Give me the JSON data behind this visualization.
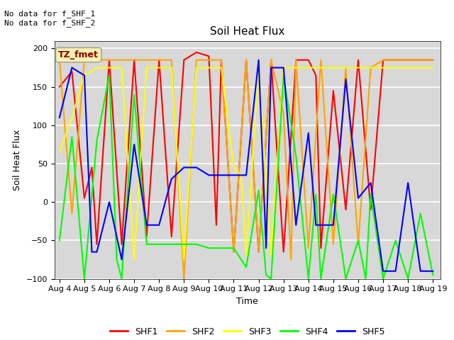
{
  "title": "Soil Heat Flux",
  "xlabel": "Time",
  "ylabel": "Soil Heat Flux",
  "ylim": [
    -100,
    210
  ],
  "annotation_text": "No data for f_SHF_1\nNo data for f_SHF_2",
  "legend_label": "TZ_fmet",
  "ax_background_color": "#d8d8d8",
  "fig_background_color": "#ffffff",
  "series": {
    "SHF1": {
      "color": "red",
      "x": [
        4,
        4.5,
        5,
        5.3,
        5.5,
        6,
        6.5,
        7,
        7.5,
        8,
        8.5,
        9,
        9.5,
        10,
        10.3,
        10.5,
        11,
        11.5,
        12,
        12.5,
        13,
        13.5,
        14,
        14.3,
        14.5,
        15,
        15.5,
        16,
        16.5,
        17,
        17.5,
        18,
        18.5,
        19
      ],
      "y": [
        150,
        170,
        5,
        45,
        -55,
        185,
        -55,
        185,
        -45,
        185,
        -45,
        185,
        195,
        190,
        -30,
        185,
        -65,
        185,
        -65,
        185,
        -65,
        185,
        185,
        165,
        -60,
        145,
        -10,
        185,
        -10,
        185,
        185,
        185,
        185,
        185
      ]
    },
    "SHF2": {
      "color": "orange",
      "x": [
        4,
        4.5,
        5,
        5.5,
        6,
        6.5,
        7,
        7.5,
        8,
        8.5,
        9,
        9.5,
        10,
        10.5,
        11,
        11.5,
        12,
        12.5,
        13,
        13.3,
        13.5,
        14,
        14.5,
        15,
        15.5,
        16,
        16.5,
        17,
        17.5,
        18,
        18.5,
        19
      ],
      "y": [
        185,
        -15,
        185,
        185,
        185,
        185,
        185,
        185,
        185,
        185,
        -100,
        185,
        185,
        185,
        -65,
        185,
        -65,
        185,
        115,
        -75,
        185,
        -60,
        185,
        -55,
        175,
        -55,
        175,
        185,
        185,
        185,
        185,
        185
      ]
    },
    "SHF3": {
      "color": "yellow",
      "x": [
        4,
        4.5,
        5,
        5.5,
        6,
        6.5,
        7,
        7.5,
        8,
        8.5,
        9,
        9.5,
        10,
        10.5,
        11,
        11.3,
        11.5,
        12,
        12.5,
        13,
        13.5,
        14,
        14.5,
        15,
        15.5,
        16,
        16.5,
        17,
        17.5,
        18,
        18.5,
        19
      ],
      "y": [
        65,
        110,
        165,
        175,
        175,
        175,
        -75,
        175,
        175,
        175,
        -75,
        175,
        175,
        175,
        45,
        35,
        -70,
        175,
        -70,
        175,
        175,
        175,
        175,
        175,
        175,
        175,
        175,
        175,
        175,
        175,
        175,
        175
      ]
    },
    "SHF4": {
      "color": "lime",
      "x": [
        4,
        4.5,
        5,
        5.5,
        6,
        6.3,
        6.5,
        7,
        7.5,
        8,
        8.5,
        9,
        9.5,
        10,
        10.5,
        11,
        11.5,
        12,
        12.3,
        12.5,
        13,
        13.5,
        14,
        14.3,
        14.5,
        15,
        15.5,
        16,
        16.3,
        16.5,
        17,
        17.5,
        18,
        18.5,
        19
      ],
      "y": [
        -50,
        85,
        -100,
        80,
        165,
        -75,
        -100,
        140,
        -55,
        -55,
        -55,
        -55,
        -55,
        -60,
        -60,
        -60,
        -85,
        15,
        -95,
        -100,
        165,
        60,
        -100,
        10,
        -100,
        10,
        -100,
        -50,
        -100,
        10,
        -100,
        -50,
        -100,
        -15,
        -95
      ]
    },
    "SHF5": {
      "color": "blue",
      "x": [
        4,
        4.5,
        5,
        5.3,
        5.5,
        6,
        6.5,
        7,
        7.5,
        8,
        8.5,
        9,
        9.5,
        10,
        10.5,
        11,
        11.5,
        12,
        12.3,
        12.5,
        13,
        13.5,
        14,
        14.3,
        14.5,
        15,
        15.5,
        16,
        16.5,
        17,
        17.5,
        18,
        18.5,
        19
      ],
      "y": [
        110,
        175,
        165,
        -65,
        -65,
        0,
        -75,
        75,
        -30,
        -30,
        30,
        45,
        45,
        35,
        35,
        35,
        35,
        185,
        -60,
        175,
        175,
        -30,
        90,
        -30,
        -30,
        -30,
        160,
        5,
        25,
        -90,
        -90,
        25,
        -90,
        -90
      ]
    }
  },
  "xticks": [
    4,
    5,
    6,
    7,
    8,
    9,
    10,
    11,
    12,
    13,
    14,
    15,
    16,
    17,
    18,
    19
  ],
  "xtick_labels": [
    "Aug 4",
    "Aug 5",
    "Aug 6",
    "Aug 7",
    "Aug 8",
    "Aug 9",
    "Aug 10",
    "Aug 11",
    "Aug 12",
    "Aug 13",
    "Aug 14",
    "Aug 15",
    "Aug 16",
    "Aug 17",
    "Aug 18",
    "Aug 19"
  ],
  "yticks": [
    -100,
    -50,
    0,
    50,
    100,
    150,
    200
  ]
}
